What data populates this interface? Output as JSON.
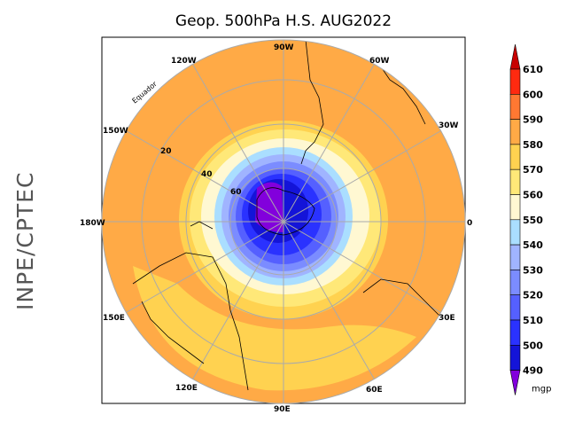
{
  "title": "Geop. 500hPa H.S. AUG2022",
  "side_label": "INPE/CPTEC",
  "longitude_labels": [
    "90W",
    "60W",
    "30W",
    "0",
    "30E",
    "60E",
    "90E",
    "120E",
    "150E",
    "180W",
    "150W",
    "120W"
  ],
  "latitude_labels": [
    "Equador",
    "20",
    "40",
    "60"
  ],
  "colorbar": {
    "unit": "mgp",
    "levels": [
      "610",
      "600",
      "590",
      "580",
      "570",
      "560",
      "550",
      "540",
      "530",
      "520",
      "510",
      "500",
      "490"
    ],
    "colors": [
      "#c80000",
      "#ff2a10",
      "#ff7832",
      "#ffaa46",
      "#ffd250",
      "#ffe878",
      "#fff8d2",
      "#aadeff",
      "#a0b4ff",
      "#7b8cff",
      "#5560ff",
      "#2a32ff",
      "#1414d8",
      "#8200dc"
    ]
  }
}
